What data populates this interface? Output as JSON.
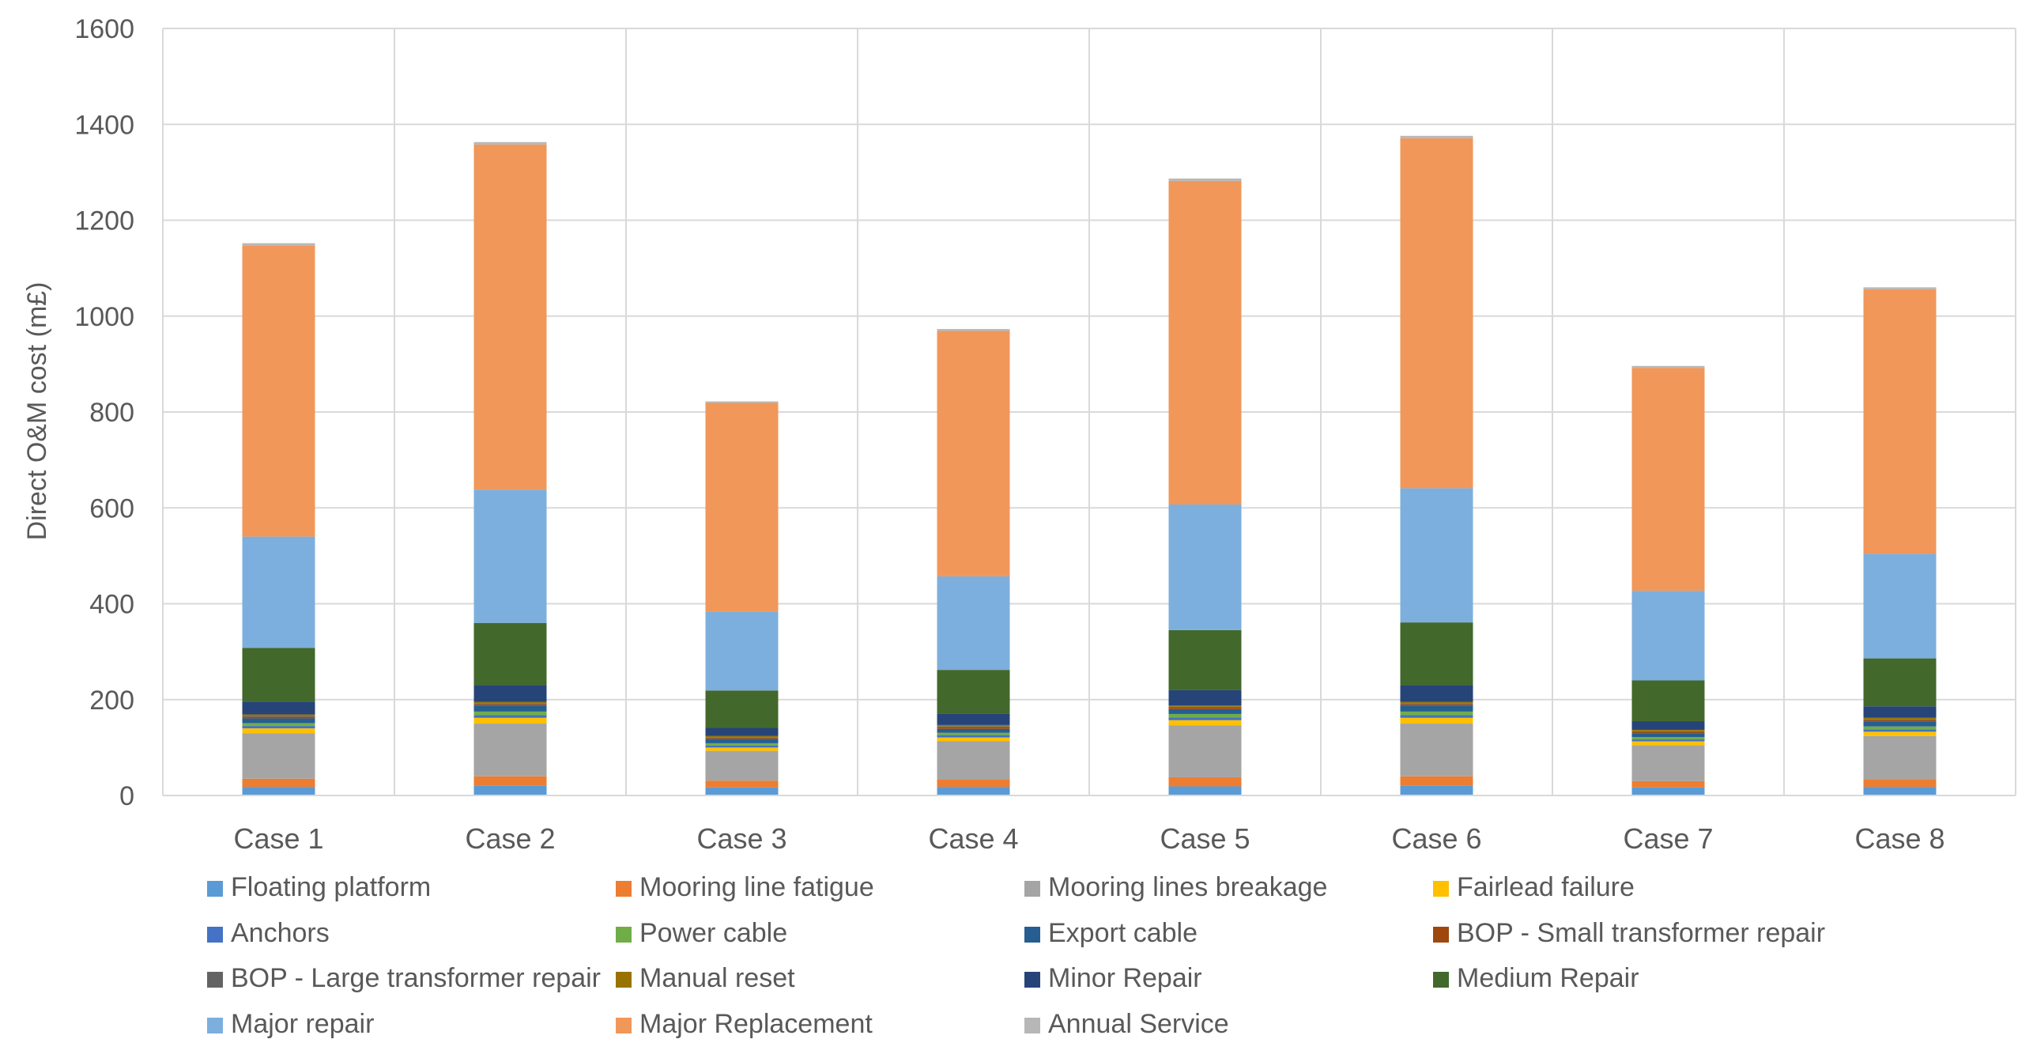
{
  "chart_data": {
    "type": "bar",
    "stacked": true,
    "title": "",
    "xlabel": "",
    "ylabel": "Direct O&M cost (m£)",
    "ylim": [
      0,
      1600
    ],
    "yticks": [
      0,
      200,
      400,
      600,
      800,
      1000,
      1200,
      1400,
      1600
    ],
    "grid": true,
    "legend_position": "bottom",
    "categories": [
      "Case 1",
      "Case 2",
      "Case 3",
      "Case 4",
      "Case 5",
      "Case 6",
      "Case 7",
      "Case 8"
    ],
    "series": [
      {
        "name": "Floating platform",
        "color": "#5B9BD5",
        "values": [
          18,
          20,
          17,
          18,
          19,
          20,
          17,
          18
        ]
      },
      {
        "name": "Mooring line fatigue",
        "color": "#ED7D31",
        "values": [
          17,
          20,
          14,
          15,
          19,
          20,
          13,
          16
        ]
      },
      {
        "name": "Mooring lines breakage",
        "color": "#A5A5A5",
        "values": [
          95,
          110,
          62,
          80,
          108,
          110,
          75,
          90
        ]
      },
      {
        "name": "Fairlead failure",
        "color": "#FFC000",
        "values": [
          10,
          12,
          7,
          8,
          11,
          12,
          8,
          9
        ]
      },
      {
        "name": "Anchors",
        "color": "#4472C4",
        "values": [
          5,
          6,
          4,
          5,
          6,
          6,
          4,
          5
        ]
      },
      {
        "name": "Power cable",
        "color": "#70AD47",
        "values": [
          6,
          7,
          5,
          5,
          7,
          7,
          5,
          6
        ]
      },
      {
        "name": "Export cable",
        "color": "#255E91",
        "values": [
          10,
          12,
          8,
          8,
          10,
          12,
          8,
          10
        ]
      },
      {
        "name": "BOP - Small transformer repair",
        "color": "#9E480E",
        "values": [
          3,
          3,
          2,
          3,
          3,
          3,
          2,
          3
        ]
      },
      {
        "name": "BOP - Large transformer repair",
        "color": "#636363",
        "values": [
          2,
          2,
          2,
          2,
          2,
          2,
          2,
          2
        ]
      },
      {
        "name": "Manual reset",
        "color": "#997300",
        "values": [
          3,
          3,
          3,
          3,
          3,
          3,
          3,
          3
        ]
      },
      {
        "name": "Minor Repair",
        "color": "#264478",
        "values": [
          27,
          35,
          17,
          23,
          32,
          35,
          18,
          24
        ]
      },
      {
        "name": "Medium Repair",
        "color": "#43682B",
        "values": [
          112,
          130,
          78,
          92,
          125,
          131,
          85,
          100
        ]
      },
      {
        "name": "Major repair",
        "color": "#7CAFDD",
        "values": [
          232,
          278,
          165,
          195,
          262,
          280,
          187,
          218
        ]
      },
      {
        "name": "Major Replacement",
        "color": "#F1975A",
        "values": [
          607,
          720,
          435,
          512,
          675,
          730,
          465,
          552
        ]
      },
      {
        "name": "Annual Service",
        "color": "#B7B7B7",
        "values": [
          5,
          5,
          3,
          4,
          5,
          5,
          4,
          4
        ]
      }
    ]
  }
}
